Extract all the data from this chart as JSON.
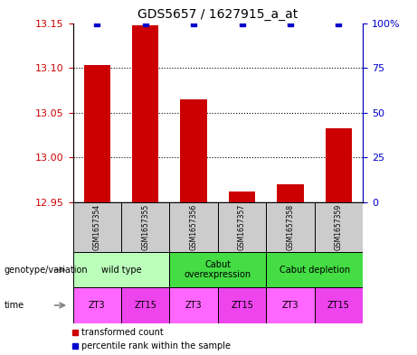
{
  "title": "GDS5657 / 1627915_a_at",
  "samples": [
    "GSM1657354",
    "GSM1657355",
    "GSM1657356",
    "GSM1657357",
    "GSM1657358",
    "GSM1657359"
  ],
  "transformed_counts": [
    13.103,
    13.148,
    13.065,
    12.962,
    12.97,
    13.033
  ],
  "percentile_ranks": [
    100,
    100,
    100,
    100,
    100,
    100
  ],
  "ylim_left": [
    12.95,
    13.15
  ],
  "yticks_left": [
    12.95,
    13.0,
    13.05,
    13.1,
    13.15
  ],
  "ylim_right": [
    0,
    100
  ],
  "yticks_right": [
    0,
    25,
    50,
    75,
    100
  ],
  "bar_color": "#cc0000",
  "dot_color": "#0000cc",
  "sample_bg_color": "#cccccc",
  "left_tick_color": "#cc0000",
  "right_tick_color": "#0000cc",
  "legend_red_label": "transformed count",
  "legend_blue_label": "percentile rank within the sample",
  "genotype_label": "genotype/variation",
  "time_label": "time",
  "time_labels": [
    "ZT3",
    "ZT15",
    "ZT3",
    "ZT15",
    "ZT3",
    "ZT15"
  ],
  "geno_groups": [
    {
      "label": "wild type",
      "start": 0,
      "end": 2,
      "color": "#bbffbb"
    },
    {
      "label": "Cabut\noverexpression",
      "start": 2,
      "end": 4,
      "color": "#44dd44"
    },
    {
      "label": "Cabut depletion",
      "start": 4,
      "end": 6,
      "color": "#44dd44"
    }
  ],
  "time_color_zt3": "#ff66ff",
  "time_color_zt15": "#ee44ee"
}
